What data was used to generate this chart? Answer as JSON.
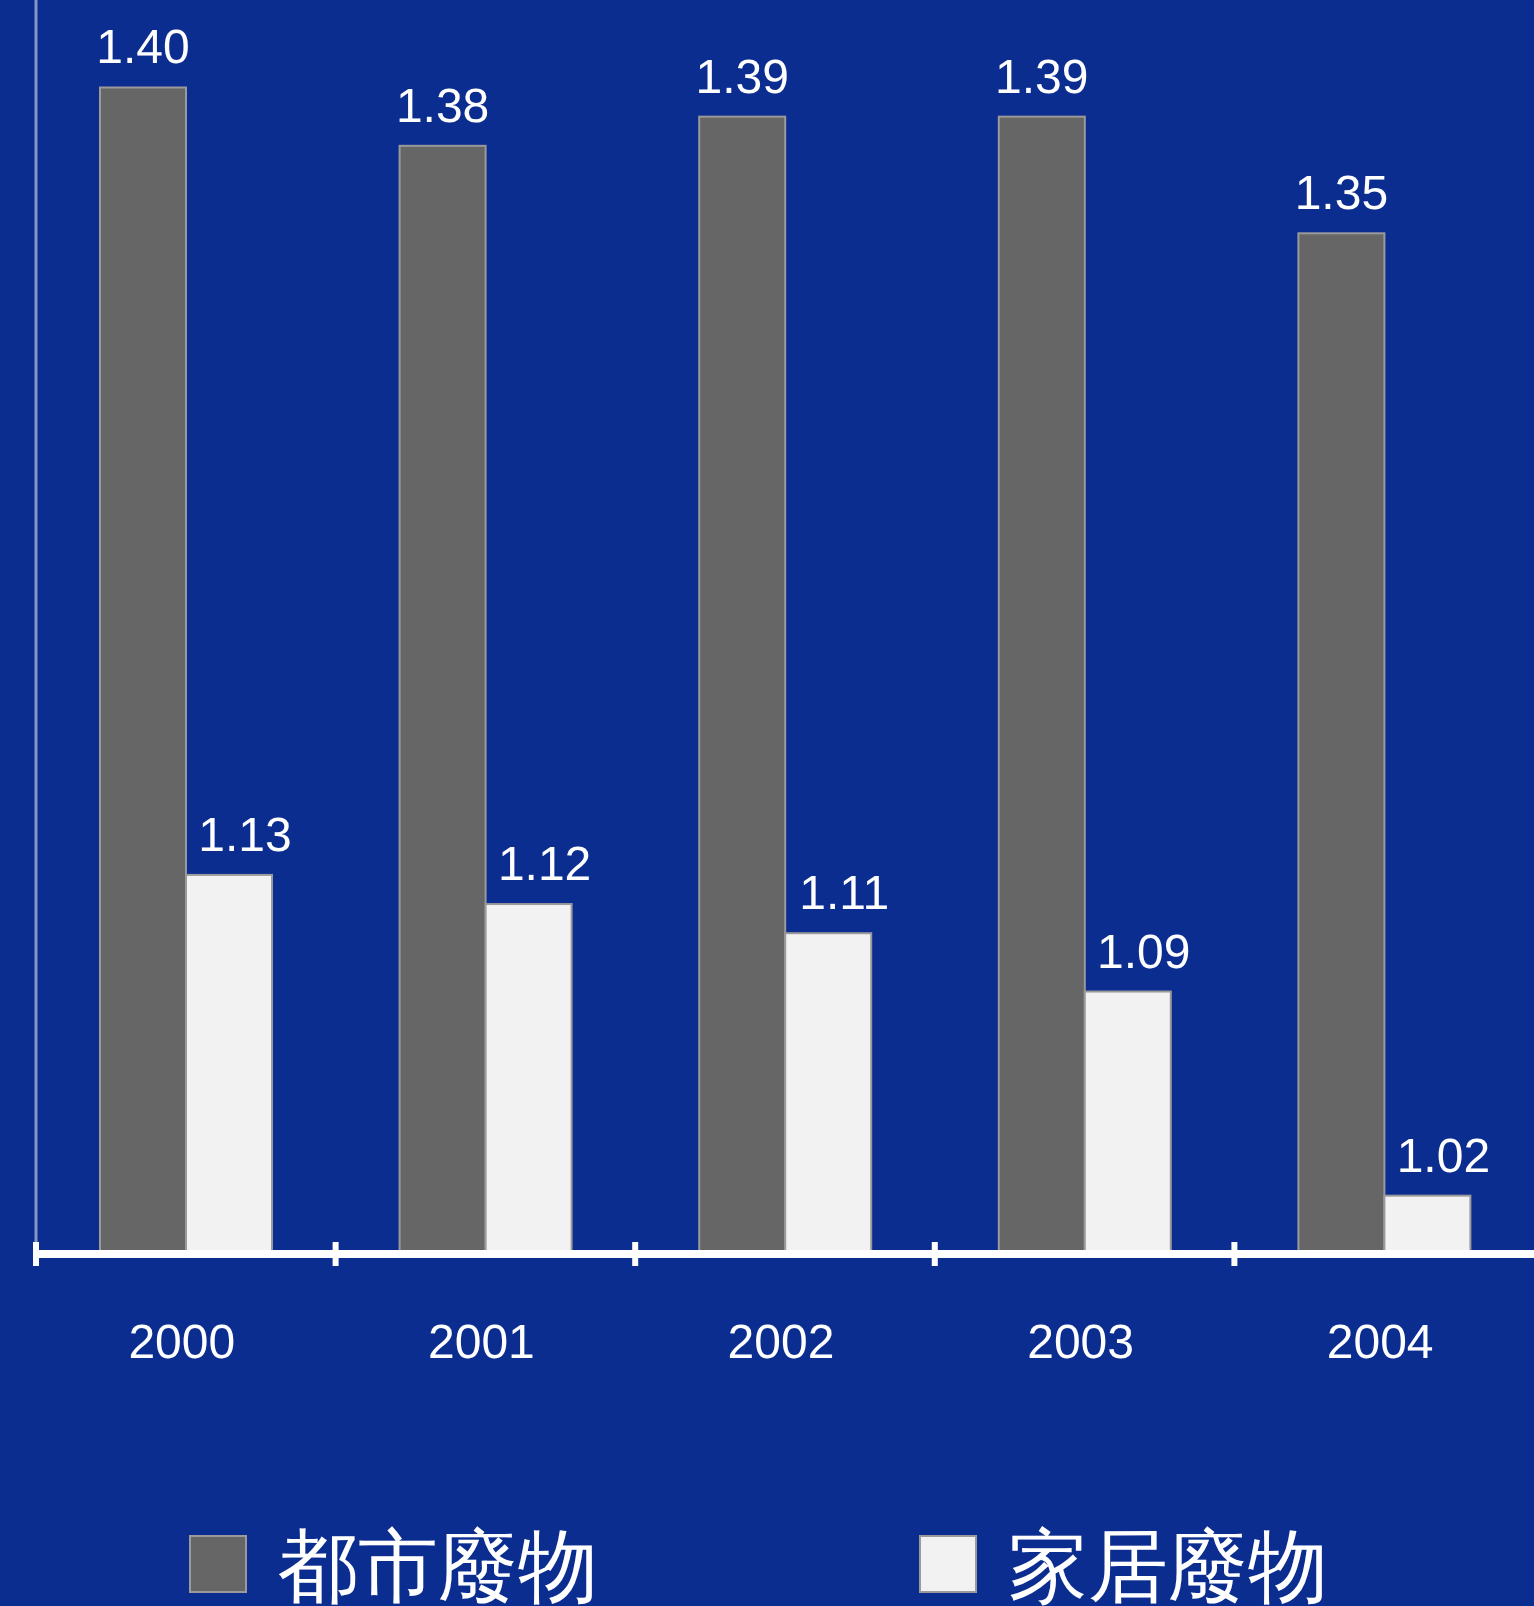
{
  "chart_data": {
    "type": "bar",
    "categories": [
      "2000",
      "2001",
      "2002",
      "2003",
      "2004"
    ],
    "series": [
      {
        "name": "都市廢物",
        "color": "#666666",
        "values": [
          1.4,
          1.38,
          1.39,
          1.39,
          1.35
        ],
        "value_labels": [
          "1.40",
          "1.38",
          "1.39",
          "1.39",
          "1.35"
        ]
      },
      {
        "name": "家居廢物",
        "color": "#f2f2f2",
        "values": [
          1.13,
          1.12,
          1.11,
          1.09,
          1.02
        ],
        "value_labels": [
          "1.13",
          "1.12",
          "1.11",
          "1.09",
          "1.02"
        ]
      }
    ],
    "ylim": [
      1.0,
      1.43
    ],
    "legend": "bottom"
  }
}
